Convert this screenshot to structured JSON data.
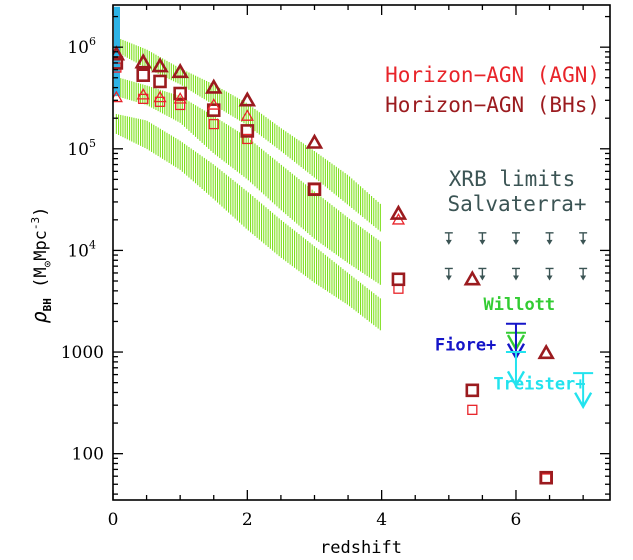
{
  "chart_data": {
    "type": "scatter",
    "xlabel": "redshift",
    "ylabel": "ρ_BH (M_⊙Mpc⁻³)",
    "ylabel_parts": {
      "rho": "ρ",
      "sub": "BH",
      "open": " (M",
      "sun": "⊙",
      "mpc": "Mpc",
      "exp": "-3",
      "close": ")"
    },
    "xlim": [
      0,
      7.4
    ],
    "ylim": [
      35,
      2600000
    ],
    "yscale": "log",
    "x_ticks": [
      "0",
      "2",
      "4",
      "6"
    ],
    "y_ticks": [
      {
        "value": 100,
        "label": "100"
      },
      {
        "value": 1000,
        "label": "1000"
      },
      {
        "value": 10000,
        "label": "10",
        "exp": "4"
      },
      {
        "value": 100000,
        "label": "10",
        "exp": "5"
      },
      {
        "value": 1000000,
        "label": "10",
        "exp": "6"
      }
    ],
    "legend": [
      {
        "label": "Horizon−AGN (AGN)",
        "color": "#e8242a"
      },
      {
        "label": "Horizon−AGN (BHs)",
        "color": "#9b1b1f"
      }
    ],
    "series": [
      {
        "name": "Horizon−AGN (AGN)",
        "marker": "square",
        "color": "#e8242a",
        "size": "small",
        "x": [
          0.05,
          0.45,
          0.7,
          1.0,
          1.5,
          2.0,
          3.0,
          4.25,
          5.35,
          6.45
        ],
        "y": [
          630000,
          310000,
          290000,
          270000,
          175000,
          125000,
          40000,
          4200,
          270,
          57
        ]
      },
      {
        "name": "Horizon−AGN (BHs)",
        "marker": "square",
        "color": "#9b1b1f",
        "size": "large",
        "x": [
          0.05,
          0.45,
          0.7,
          1.0,
          1.5,
          2.0,
          3.0,
          4.25,
          5.35,
          6.45
        ],
        "y": [
          700000,
          530000,
          460000,
          350000,
          240000,
          150000,
          40000,
          5200,
          420,
          58
        ]
      },
      {
        "name": "Horizon−AGN (AGN)",
        "marker": "triangle",
        "color": "#e8242a",
        "size": "small",
        "x": [
          0.05,
          0.45,
          0.7,
          1.0,
          1.5,
          2.0,
          4.25
        ],
        "y": [
          320000,
          340000,
          320000,
          310000,
          270000,
          210000,
          20000
        ]
      },
      {
        "name": "Horizon−AGN (BHs)",
        "marker": "triangle",
        "color": "#9b1b1f",
        "size": "large",
        "x": [
          0.05,
          0.45,
          0.7,
          1.0,
          1.5,
          2.0,
          3.0,
          4.25,
          5.35,
          6.45
        ],
        "y": [
          850000,
          710000,
          650000,
          570000,
          400000,
          300000,
          115000,
          23000,
          5200,
          980
        ]
      }
    ],
    "bands": [
      {
        "color": "#7fe01e",
        "x": [
          0.05,
          0.5,
          1.0,
          1.5,
          2.0,
          2.5,
          3.0,
          3.5,
          4.0
        ],
        "lower": [
          900000,
          620000,
          430000,
          270000,
          170000,
          95000,
          52000,
          28000,
          15000
        ],
        "upper": [
          1250000,
          950000,
          620000,
          430000,
          280000,
          160000,
          95000,
          55000,
          28000
        ]
      },
      {
        "color": "#7fe01e",
        "x": [
          0.05,
          0.5,
          1.0,
          1.5,
          2.0,
          2.5,
          3.0,
          3.5,
          4.0
        ],
        "lower": [
          330000,
          270000,
          180000,
          90000,
          50000,
          25000,
          13000,
          7500,
          4500
        ],
        "upper": [
          510000,
          420000,
          330000,
          210000,
          130000,
          70000,
          38000,
          21000,
          12000
        ]
      },
      {
        "color": "#7fe01e",
        "x": [
          0.05,
          0.5,
          1.0,
          1.5,
          2.0,
          2.5,
          3.0,
          3.5,
          4.0
        ],
        "lower": [
          140000,
          100000,
          62000,
          32000,
          16000,
          8500,
          4800,
          2900,
          1600
        ],
        "upper": [
          220000,
          190000,
          120000,
          70000,
          38000,
          20000,
          11000,
          6000,
          3300
        ]
      }
    ],
    "xrb_limits": {
      "label1": "XRB limits",
      "label2": "Salvaterra+",
      "color": "#3b5454",
      "x": [
        5.0,
        5.5,
        6.0,
        6.5,
        7.0
      ],
      "y_high": 13000,
      "y_low": 5800
    },
    "annotations": [
      {
        "label": "Willott",
        "color": "#33cc33",
        "x": 6.05,
        "y": 2600
      },
      {
        "label": "Fiore+",
        "color": "#1515c8",
        "x": 5.25,
        "y": 1040
      },
      {
        "label": "Treister+",
        "color": "#22e3ee",
        "x": 6.35,
        "y": 430
      }
    ],
    "upper_limits": [
      {
        "name": "Willott",
        "color": "#33cc33",
        "x": 6.0,
        "y_top": 1550,
        "y_tip": 1070
      },
      {
        "name": "Fiore+",
        "color": "#1515c8",
        "x": 6.0,
        "y_top": 1900,
        "y_tip": 880
      },
      {
        "name": "Treister+",
        "color": "#22e3ee",
        "x": 6.0,
        "y_top": 1000,
        "y_tip": 470
      },
      {
        "name": "Treister+",
        "color": "#22e3ee",
        "x": 7.0,
        "y_top": 620,
        "y_tip": 290
      }
    ],
    "local_bar": {
      "color": "#2db3e6",
      "x": 0.0,
      "low": 330000,
      "high": 2500000
    }
  }
}
